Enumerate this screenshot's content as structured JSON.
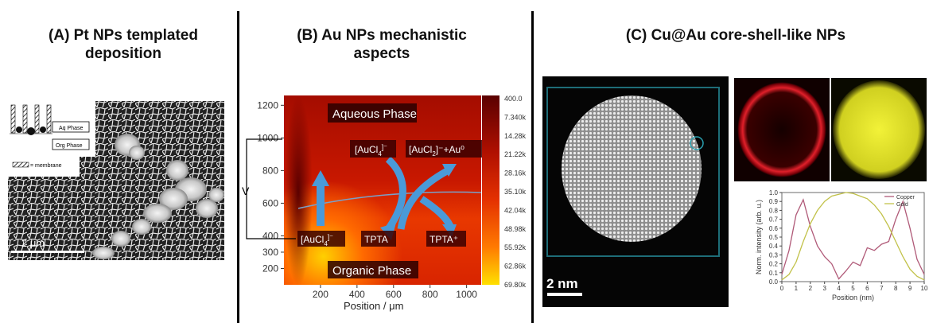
{
  "panelA": {
    "title_line1": "(A) Pt NPs templated",
    "title_line2": "deposition",
    "legend_aq": "Aq Phase",
    "legend_org": "Org Phase",
    "legend_membrane": "= membrane",
    "scale_bar": "2 μm"
  },
  "panelB": {
    "title_line1": "(B) Au NPs mechanistic",
    "title_line2": "aspects",
    "aqueous_label": "Aqueous Phase",
    "organic_label": "Organic Phase",
    "v_label": "V",
    "species": {
      "aucl4_top": "[AuCl",
      "aucl4_top_sub": "4",
      "aucl4_top_sup": "]⁻",
      "aucl2_au0": "[AuCl",
      "aucl2_sub": "2",
      "aucl2_tail": "]⁻+Au⁰",
      "aucl4_bottom": "[AuCl",
      "aucl4_bottom_sub": "4",
      "aucl4_bottom_sup": "]⁻",
      "tpta": "TPTA",
      "tpta_plus": "TPTA⁺"
    },
    "chart_data": {
      "type": "heatmap",
      "xlabel": "Position / μm",
      "ylabel": "",
      "xlim": [
        0,
        1080
      ],
      "ylim": [
        100,
        1260
      ],
      "x_ticks": [
        "200",
        "400",
        "600",
        "800",
        "1000"
      ],
      "y_ticks": [
        "200",
        "300",
        "400",
        "600",
        "800",
        "1000",
        "1200"
      ],
      "colorbar_labels": [
        "400.0",
        "7.340k",
        "14.28k",
        "21.22k",
        "28.16k",
        "35.10k",
        "42.04k",
        "48.98k",
        "55.92k",
        "62.86k",
        "69.80k"
      ]
    }
  },
  "panelC": {
    "title": "(C) Cu@Au core-shell-like NPs",
    "scale_bar": "2 nm",
    "chart_data": {
      "type": "line",
      "xlabel": "Position (nm)",
      "ylabel": "Norm. intensity (arb. u.)",
      "xlim": [
        0,
        10
      ],
      "ylim": [
        0,
        1.0
      ],
      "x_ticks": [
        "0",
        "1",
        "2",
        "3",
        "4",
        "5",
        "6",
        "7",
        "8",
        "9",
        "10"
      ],
      "y_ticks": [
        "0.0",
        "0.1",
        "0.2",
        "0.3",
        "0.4",
        "0.5",
        "0.6",
        "0.7",
        "0.8",
        "0.9",
        "1.0"
      ],
      "legend": "top-right",
      "series": [
        {
          "name": "Copper",
          "color": "#b05a78",
          "x": [
            0.0,
            0.5,
            1.0,
            1.5,
            2.0,
            2.5,
            3.0,
            3.5,
            4.0,
            4.5,
            5.0,
            5.5,
            6.0,
            6.5,
            7.0,
            7.5,
            8.0,
            8.5,
            9.0,
            9.5,
            10.0
          ],
          "y": [
            0.08,
            0.35,
            0.75,
            0.92,
            0.62,
            0.4,
            0.28,
            0.2,
            0.03,
            0.12,
            0.22,
            0.18,
            0.38,
            0.35,
            0.42,
            0.45,
            0.7,
            0.9,
            0.6,
            0.25,
            0.08
          ]
        },
        {
          "name": "Gold",
          "color": "#c2c24a",
          "x": [
            0.0,
            0.5,
            1.0,
            1.5,
            2.0,
            2.5,
            3.0,
            3.5,
            4.0,
            4.5,
            5.0,
            5.5,
            6.0,
            6.5,
            7.0,
            7.5,
            8.0,
            8.5,
            9.0,
            9.5,
            10.0
          ],
          "y": [
            0.02,
            0.08,
            0.22,
            0.45,
            0.65,
            0.8,
            0.9,
            0.96,
            0.98,
            1.0,
            0.99,
            0.96,
            0.93,
            0.86,
            0.76,
            0.62,
            0.45,
            0.28,
            0.14,
            0.06,
            0.02
          ]
        }
      ]
    }
  }
}
